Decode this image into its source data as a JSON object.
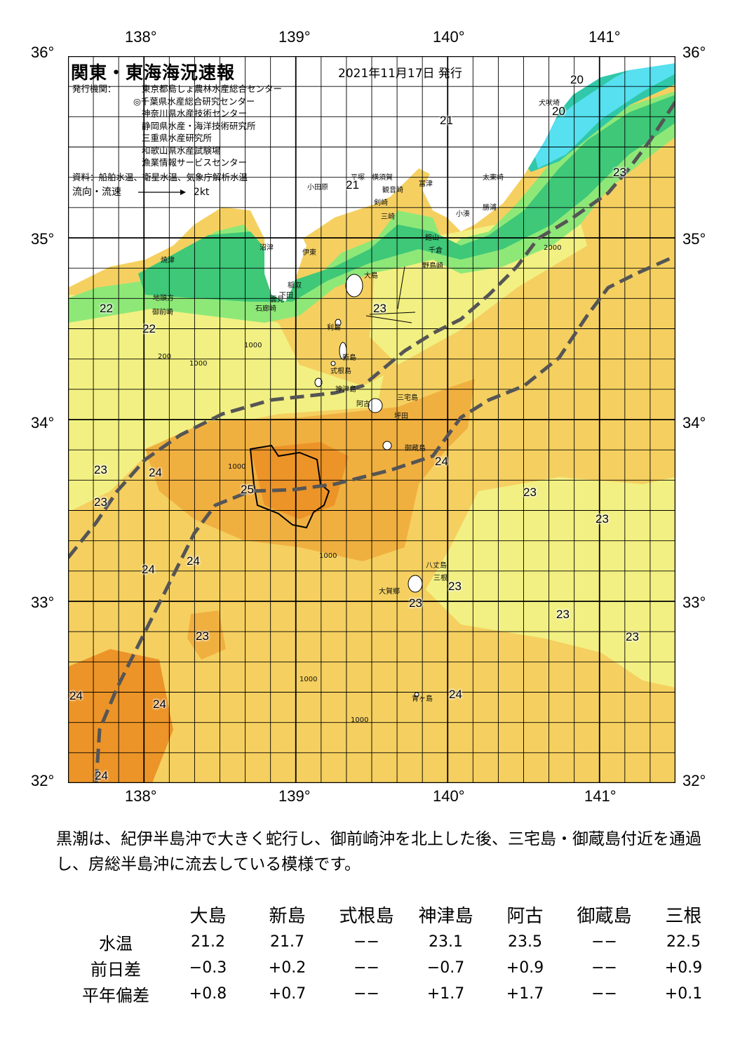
{
  "header": {
    "title": "関東・東海海況速報",
    "issued": "2021年11月17日 発行",
    "issuer_label": "発行機関：",
    "issuers": [
      "東京都島しょ農林水産総合センター",
      "◎千葉県水産総合研究センター",
      "神奈川県水産技術センター",
      "静岡県水産・海洋技術研究所",
      "三重県水産研究所",
      "和歌山県水産試験場",
      "漁業情報サービスセンター"
    ],
    "source": "資料：船舶水温、衛星水温、気象庁解析水温",
    "flow_label": "流向・流速",
    "flow_scale": "2kt"
  },
  "map": {
    "lon_ticks_top": [
      "138°",
      "139°",
      "140°",
      "141°"
    ],
    "lon_ticks_bottom": [
      "138°",
      "139°",
      "140°",
      "141°"
    ],
    "lat_ticks": [
      "36°",
      "35°",
      "34°",
      "33°",
      "32°"
    ],
    "temperature_labels": [
      "20",
      "20",
      "21",
      "21",
      "23",
      "23",
      "22",
      "22",
      "23",
      "23",
      "24",
      "25",
      "24",
      "23",
      "23",
      "24",
      "24",
      "23",
      "23",
      "23",
      "23",
      "23",
      "24",
      "24",
      "24",
      "24"
    ],
    "place_names": [
      "犬吠埼",
      "太東崎",
      "勝浦",
      "小湊",
      "富津",
      "観音崎",
      "横須賀",
      "平塚",
      "小田原",
      "剣崎",
      "三崎",
      "館山",
      "千倉",
      "野島崎",
      "大島",
      "沼津",
      "伊東",
      "焼津",
      "稲取",
      "下田",
      "石廊崎",
      "雲見",
      "地頭方",
      "御前崎",
      "利島",
      "新島",
      "式根島",
      "神津島",
      "三宅島",
      "阿古",
      "坪田",
      "御蔵島",
      "八丈島",
      "三根",
      "大賀郷",
      "青ヶ島"
    ],
    "contour_labels": [
      "1000",
      "1000",
      "1000",
      "1000",
      "1000",
      "200",
      "1000",
      "2000"
    ],
    "colors": {
      "cold": "#56e0f0",
      "cool": "#30c8a8",
      "green": "#3ec878",
      "lightgreen": "#8ee878",
      "yellow": "#f2f082",
      "lightorange": "#f5d060",
      "orange": "#f0b040",
      "warm": "#ec9428",
      "land": "#ffffff",
      "kuroshio_line": "#555555"
    }
  },
  "summary": {
    "text": "黒潮は、紀伊半島沖で大きく蛇行し、御前崎沖を北上した後、三宅島・御蔵島付近を通過し、房総半島沖に流去している模様です。"
  },
  "stats": {
    "columns": [
      "大島",
      "新島",
      "式根島",
      "神津島",
      "阿古",
      "御蔵島",
      "三根"
    ],
    "rows": [
      {
        "label": "水温",
        "values": [
          "21.2",
          "21.7",
          "−−",
          "23.1",
          "23.5",
          "−−",
          "22.5"
        ]
      },
      {
        "label": "前日差",
        "values": [
          "−0.3",
          "+0.2",
          "−−",
          "−0.7",
          "+0.9",
          "−−",
          "+0.9"
        ]
      },
      {
        "label": "平年偏差",
        "values": [
          "+0.8",
          "+0.7",
          "−−",
          "+1.7",
          "+1.7",
          "−−",
          "+0.1"
        ]
      }
    ]
  }
}
